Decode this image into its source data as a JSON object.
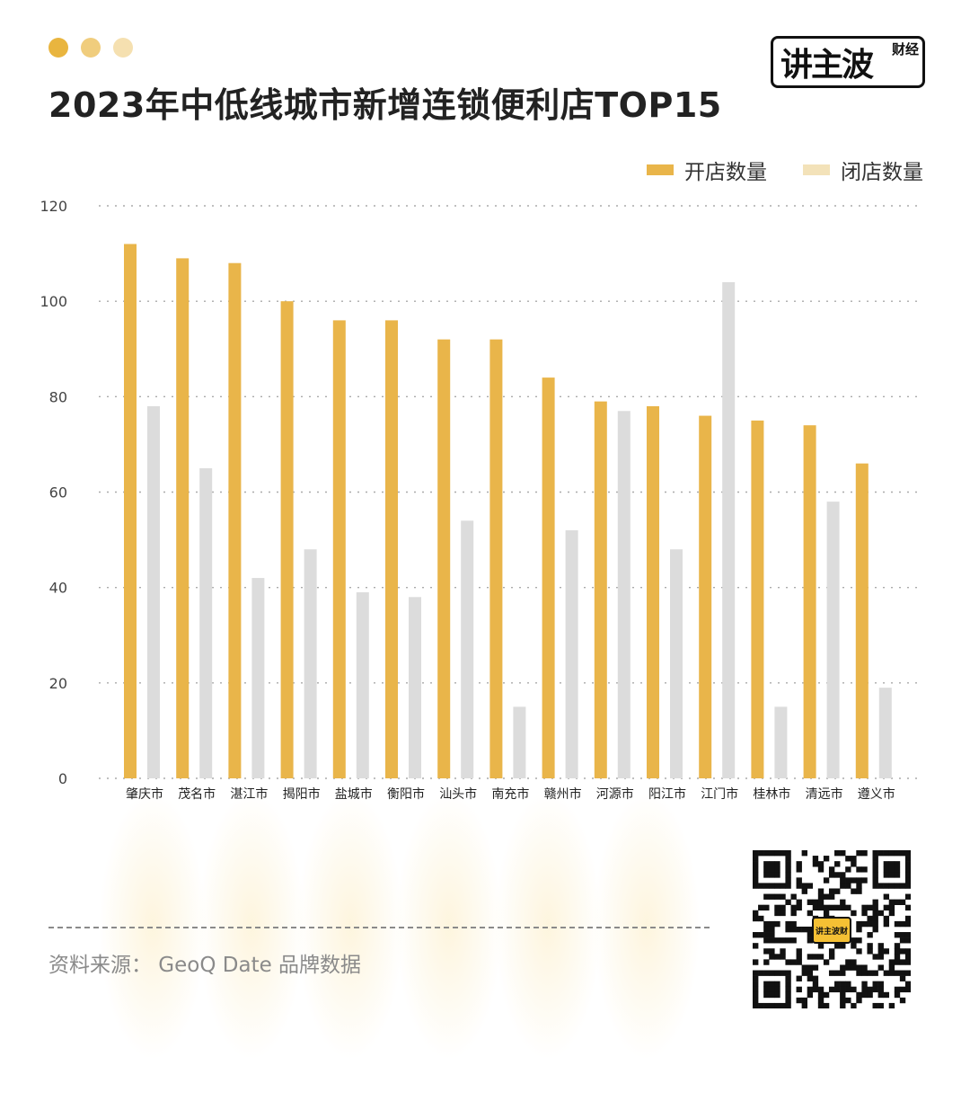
{
  "header": {
    "title": "2023年中低线城市新增连锁便利店TOP15",
    "dot_colors": [
      "#e9b53f",
      "#f0cd7d",
      "#f5e0b0"
    ]
  },
  "logo": {
    "main": "讲主波",
    "sub": "财经"
  },
  "legend": {
    "open_label": "开店数量",
    "close_label": "闭店数量"
  },
  "colors": {
    "open": "#e9b54a",
    "close": "#dcdcdc",
    "grid": "#aaaaaa",
    "axis_text": "#444444"
  },
  "chart_data": {
    "type": "bar",
    "title": "2023年中低线城市新增连锁便利店TOP15",
    "xlabel": "",
    "ylabel": "",
    "ylim": [
      0,
      120
    ],
    "yticks": [
      0,
      20,
      40,
      60,
      80,
      100,
      120
    ],
    "grid": true,
    "legend_position": "top-right",
    "categories": [
      "肇庆市",
      "茂名市",
      "湛江市",
      "揭阳市",
      "盐城市",
      "衡阳市",
      "汕头市",
      "南充市",
      "赣州市",
      "河源市",
      "阳江市",
      "江门市",
      "桂林市",
      "清远市",
      "遵义市"
    ],
    "series": [
      {
        "name": "开店数量",
        "values": [
          112,
          109,
          108,
          100,
          96,
          96,
          92,
          92,
          84,
          79,
          78,
          76,
          75,
          74,
          66
        ]
      },
      {
        "name": "闭店数量",
        "values": [
          78,
          65,
          42,
          48,
          39,
          38,
          54,
          15,
          52,
          77,
          48,
          104,
          15,
          58,
          19
        ]
      }
    ]
  },
  "footer": {
    "source": "资料来源：  GeoQ Date 品牌数据",
    "qr_center": "讲主波财"
  }
}
